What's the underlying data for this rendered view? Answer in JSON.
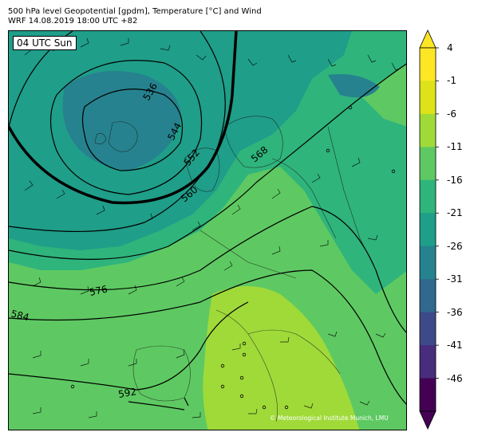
{
  "title_line1": "500 hPa level Geopotential [gpdm], Temperature [°C] and Wind",
  "title_line2": "WRF 14.08.2019 18:00 UTC +82",
  "time_label": "04 UTC Sun",
  "copyright": "© Meteorological Institute Munich, LMU",
  "colorbar": {
    "levels": [
      4,
      -1,
      -6,
      -11,
      -16,
      -21,
      -26,
      -31,
      -36,
      -41,
      -46
    ],
    "colors": [
      "#fde725",
      "#dde318",
      "#a0da39",
      "#5ec962",
      "#2fb47c",
      "#1f9e89",
      "#26828e",
      "#31688e",
      "#3e4989",
      "#472d7b",
      "#440154"
    ]
  },
  "contour_labels": [
    "536",
    "544",
    "552",
    "560",
    "568",
    "576",
    "584",
    "592"
  ]
}
